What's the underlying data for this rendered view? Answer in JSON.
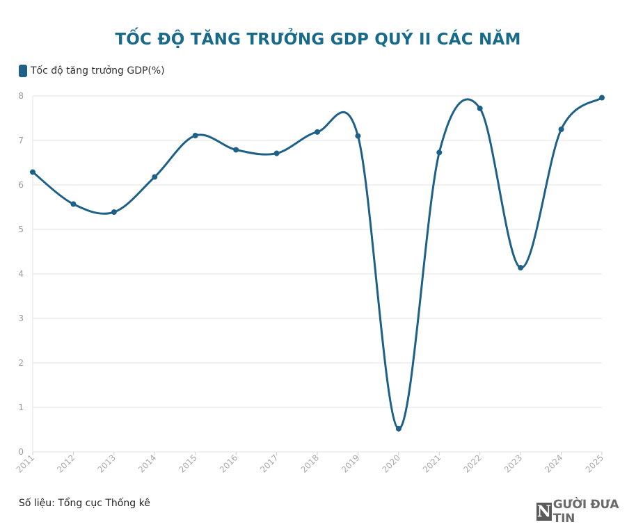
{
  "chart_data": {
    "type": "line",
    "title": "TỐC ĐỘ TĂNG TRƯỞNG GDP QUÝ II CÁC NĂM",
    "categories": [
      "2011",
      "2012",
      "2013",
      "2014",
      "2015",
      "2016",
      "2017",
      "2018",
      "2019",
      "2020",
      "2021",
      "2022",
      "2023",
      "2024",
      "2025"
    ],
    "series": [
      {
        "name": "Tốc độ tăng trưởng GDP(%)",
        "color": "#1d6088",
        "values": [
          6.29,
          5.57,
          5.39,
          6.18,
          7.11,
          6.79,
          6.71,
          7.19,
          7.1,
          0.52,
          6.73,
          7.72,
          4.14,
          7.25,
          7.96
        ]
      }
    ],
    "xlabel": "",
    "ylabel": "",
    "ylim": [
      0,
      8
    ],
    "yticks": [
      0,
      1,
      2,
      3,
      4,
      5,
      6,
      7,
      8
    ],
    "grid": true,
    "legend_position": "top-left",
    "curve": "smooth"
  },
  "source": "Số liệu: Tổng cục Thống kê",
  "logo": {
    "letter": "N",
    "text": "GƯỜI ĐƯA TIN"
  }
}
